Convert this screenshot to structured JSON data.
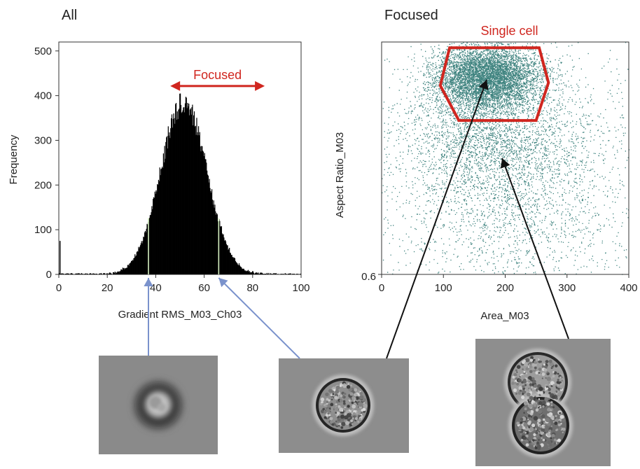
{
  "colors": {
    "gate": "#d0261f",
    "scatter": "#1f6f6a",
    "pointer_blue": "#7a92cc",
    "pointer_black": "#111111",
    "bar": "#000000",
    "gate_lines": "#d6f2c2"
  },
  "chart_data": [
    {
      "type": "bar",
      "title": "All",
      "xlabel": "Gradient RMS_M03_Ch03",
      "ylabel": "Frequency",
      "xlim": [
        0,
        100
      ],
      "ylim": [
        0,
        520
      ],
      "x_ticks": [
        "0",
        "20",
        "40",
        "60",
        "80",
        "100"
      ],
      "y_ticks": [
        "0",
        "100",
        "200",
        "300",
        "400",
        "500"
      ],
      "distribution": {
        "shape": "gaussian",
        "center": 51.5,
        "sd": 9.5,
        "peak": 385,
        "bins_per_unit": 4
      },
      "spikes": [
        {
          "x": 0.3,
          "y": 75
        }
      ],
      "focused_gate": [
        37,
        66
      ],
      "annotation": {
        "text": "Focused",
        "x_start": 46,
        "x_end": 85,
        "y": 445
      }
    },
    {
      "type": "scatter",
      "title": "Focused",
      "xlabel": "Area_M03",
      "ylabel": "Aspect Ratio_M03",
      "xlim": [
        0,
        400
      ],
      "ylim": [
        0.6,
        1.0
      ],
      "x_ticks": [
        "0",
        "100",
        "200",
        "300",
        "400"
      ],
      "y_ticks": [
        "0.6"
      ],
      "clusters": [
        {
          "cx": 170,
          "cy": 0.94,
          "sx": 42,
          "sy": 0.028,
          "n": 6000
        },
        {
          "cx": 180,
          "cy": 0.84,
          "sx": 75,
          "sy": 0.06,
          "n": 2600
        },
        {
          "cx": 220,
          "cy": 0.72,
          "sx": 110,
          "sy": 0.09,
          "n": 1700
        },
        {
          "cx": 230,
          "cy": 0.8,
          "sx": 150,
          "sy": 0.14,
          "n": 900
        }
      ],
      "gate": {
        "label": "Single cell",
        "polygon": [
          [
            110,
            0.99
          ],
          [
            255,
            0.99
          ],
          [
            270,
            0.93
          ],
          [
            250,
            0.865
          ],
          [
            125,
            0.865
          ],
          [
            95,
            0.925
          ]
        ]
      }
    }
  ],
  "cells": {
    "images": [
      {
        "name": "cell-image-blurred",
        "type": "blurred"
      },
      {
        "name": "cell-image-focused-single",
        "type": "focused"
      },
      {
        "name": "cell-image-doublet",
        "type": "doublet"
      }
    ]
  }
}
